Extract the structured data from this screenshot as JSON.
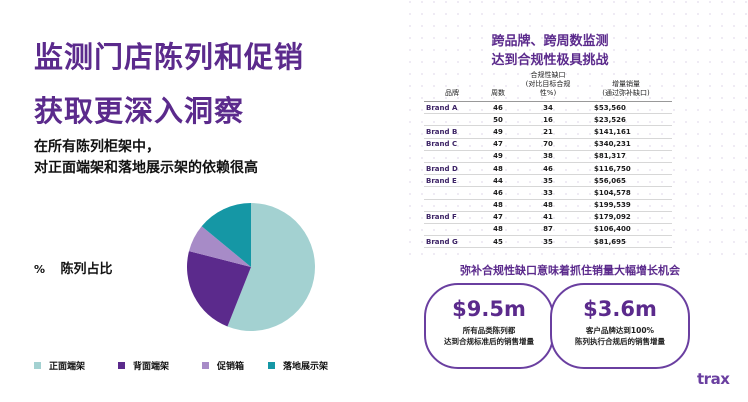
{
  "slide": {
    "title_line1": "监测门店陈列和促销",
    "title_line2": "获取更深入洞察",
    "subtitle_line1": "在所有陈列柜架中，",
    "subtitle_line2": "对正面端架和落地展示架的依赖很高"
  },
  "pie": {
    "pct_symbol": "%",
    "label": "陈列占比",
    "colors": [
      "#a3d1d1",
      "#5b2a8c",
      "#a78bc7",
      "#1597a5"
    ]
  },
  "chart_data": {
    "type": "pie",
    "categories": [
      "正面端架",
      "背面端架",
      "促销箱",
      "落地展示架"
    ],
    "values": [
      56,
      23,
      7,
      14
    ]
  },
  "legend": [
    {
      "label": "正面端架",
      "color": "#a3d1d1"
    },
    {
      "label": "背面端架",
      "color": "#5b2a8c"
    },
    {
      "label": "促销箱",
      "color": "#a78bc7"
    },
    {
      "label": "落地展示架",
      "color": "#1597a5"
    }
  ],
  "table": {
    "title_line1": "跨品牌、跨周数监测",
    "title_line2": "达到合规性极具挑战",
    "headers": {
      "brand": "品牌",
      "weeks": "周数",
      "gap_line1": "合规性缺口",
      "gap_line2": "(对比目标合规性%)",
      "sales_line1": "增量销量",
      "sales_line2": "(通过弥补缺口)"
    },
    "rows": [
      {
        "brand": "Brand A",
        "weeks": "46",
        "gap": "34",
        "sales": "$53,560"
      },
      {
        "brand": "",
        "weeks": "50",
        "gap": "16",
        "sales": "$23,526"
      },
      {
        "brand": "Brand B",
        "weeks": "49",
        "gap": "21",
        "sales": "$141,161"
      },
      {
        "brand": "Brand C",
        "weeks": "47",
        "gap": "70",
        "sales": "$340,231"
      },
      {
        "brand": "",
        "weeks": "49",
        "gap": "38",
        "sales": "$81,317"
      },
      {
        "brand": "Brand D",
        "weeks": "48",
        "gap": "46",
        "sales": "$116,750"
      },
      {
        "brand": "Brand E",
        "weeks": "44",
        "gap": "35",
        "sales": "$56,065"
      },
      {
        "brand": "",
        "weeks": "46",
        "gap": "33",
        "sales": "$104,578"
      },
      {
        "brand": "",
        "weeks": "48",
        "gap": "48",
        "sales": "$199,539"
      },
      {
        "brand": "Brand F",
        "weeks": "47",
        "gap": "41",
        "sales": "$179,092"
      },
      {
        "brand": "",
        "weeks": "48",
        "gap": "87",
        "sales": "$106,400"
      },
      {
        "brand": "Brand G",
        "weeks": "45",
        "gap": "35",
        "sales": "$81,695"
      }
    ]
  },
  "opportunity": {
    "headline": "弥补合规性缺口意味着抓住销量大幅增长机会",
    "card1": {
      "amount": "$9.5m",
      "desc_line1": "所有品类陈列都",
      "desc_line2": "达到合规标准后的销售增量"
    },
    "card2": {
      "amount": "$3.6m",
      "desc_line1": "客户品牌达到100%",
      "desc_line2": "陈列执行合规后的销售增量"
    }
  },
  "brand": {
    "logo": "trax"
  }
}
